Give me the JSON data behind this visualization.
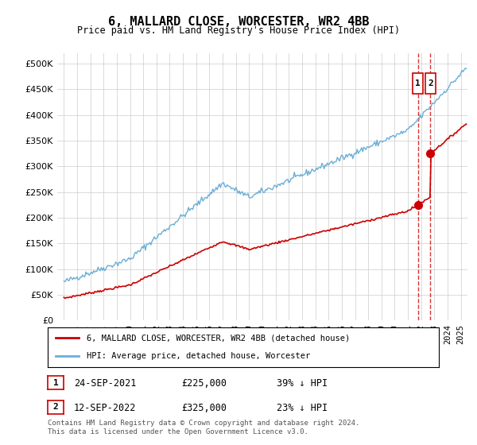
{
  "title": "6, MALLARD CLOSE, WORCESTER, WR2 4BB",
  "subtitle": "Price paid vs. HM Land Registry's House Price Index (HPI)",
  "legend_line1": "6, MALLARD CLOSE, WORCESTER, WR2 4BB (detached house)",
  "legend_line2": "HPI: Average price, detached house, Worcester",
  "footer": "Contains HM Land Registry data © Crown copyright and database right 2024.\nThis data is licensed under the Open Government Licence v3.0.",
  "annotation1_label": "1",
  "annotation1_date": "24-SEP-2021",
  "annotation1_price": "£225,000",
  "annotation1_hpi": "39% ↓ HPI",
  "annotation2_label": "2",
  "annotation2_date": "12-SEP-2022",
  "annotation2_price": "£325,000",
  "annotation2_hpi": "23% ↓ HPI",
  "sale1_year": 2021.75,
  "sale1_price": 225000,
  "sale2_year": 2022.7,
  "sale2_price": 325000,
  "hpi_color": "#6aaed6",
  "price_color": "#cc0000",
  "dashed_color": "#cc0000",
  "background_color": "#ffffff",
  "grid_color": "#cccccc",
  "ylim_min": 0,
  "ylim_max": 520000,
  "yticks": [
    0,
    50000,
    100000,
    150000,
    200000,
    250000,
    300000,
    350000,
    400000,
    450000,
    500000
  ],
  "xlim_min": 1994.5,
  "xlim_max": 2025.5
}
